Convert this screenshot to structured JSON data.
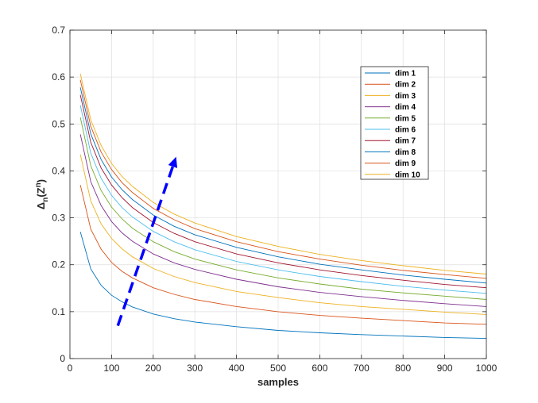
{
  "chart_data": {
    "type": "line",
    "xlabel": "samples",
    "ylabel": {
      "delta": "Δ",
      "n": "n",
      "open": "(",
      "z": "Z",
      "sup": "n",
      "close": ")"
    },
    "xlim": [
      0,
      1000
    ],
    "ylim": [
      0,
      0.7
    ],
    "xticks": [
      0,
      100,
      200,
      300,
      400,
      500,
      600,
      700,
      800,
      900,
      1000
    ],
    "yticks": [
      0,
      0.1,
      0.2,
      0.3,
      0.4,
      0.5,
      0.6,
      0.7
    ],
    "grid": true,
    "legend_location": "top-right",
    "x": [
      25,
      50,
      75,
      100,
      125,
      150,
      200,
      250,
      300,
      400,
      500,
      600,
      700,
      800,
      900,
      1000
    ],
    "series": [
      {
        "name": "dim 1",
        "color": "#0072bd",
        "values": [
          0.27,
          0.191,
          0.156,
          0.135,
          0.121,
          0.11,
          0.095,
          0.085,
          0.078,
          0.068,
          0.06,
          0.055,
          0.051,
          0.048,
          0.045,
          0.043
        ]
      },
      {
        "name": "dim 2",
        "color": "#d95319",
        "values": [
          0.37,
          0.276,
          0.233,
          0.205,
          0.186,
          0.172,
          0.151,
          0.137,
          0.126,
          0.111,
          0.1,
          0.092,
          0.086,
          0.081,
          0.076,
          0.073
        ]
      },
      {
        "name": "dim 3",
        "color": "#edb120",
        "values": [
          0.435,
          0.336,
          0.287,
          0.256,
          0.234,
          0.217,
          0.192,
          0.175,
          0.162,
          0.143,
          0.13,
          0.119,
          0.111,
          0.105,
          0.099,
          0.094
        ]
      },
      {
        "name": "dim 4",
        "color": "#7e2f8e",
        "values": [
          0.478,
          0.377,
          0.326,
          0.292,
          0.268,
          0.25,
          0.223,
          0.204,
          0.19,
          0.169,
          0.153,
          0.141,
          0.132,
          0.124,
          0.117,
          0.111
        ]
      },
      {
        "name": "dim 5",
        "color": "#77ac30",
        "values": [
          0.514,
          0.411,
          0.358,
          0.323,
          0.298,
          0.278,
          0.249,
          0.228,
          0.212,
          0.189,
          0.172,
          0.159,
          0.148,
          0.14,
          0.133,
          0.126
        ]
      },
      {
        "name": "dim 6",
        "color": "#4dbeee",
        "values": [
          0.54,
          0.438,
          0.384,
          0.348,
          0.322,
          0.302,
          0.271,
          0.249,
          0.232,
          0.207,
          0.189,
          0.175,
          0.164,
          0.154,
          0.146,
          0.139
        ]
      },
      {
        "name": "dim 7",
        "color": "#a2142f",
        "values": [
          0.562,
          0.461,
          0.406,
          0.37,
          0.343,
          0.322,
          0.29,
          0.267,
          0.249,
          0.223,
          0.204,
          0.189,
          0.177,
          0.167,
          0.158,
          0.151
        ]
      },
      {
        "name": "dim 8",
        "color": "#0072bd",
        "values": [
          0.578,
          0.479,
          0.424,
          0.387,
          0.36,
          0.339,
          0.306,
          0.282,
          0.264,
          0.237,
          0.217,
          0.201,
          0.189,
          0.178,
          0.169,
          0.161
        ]
      },
      {
        "name": "dim 9",
        "color": "#d95319",
        "values": [
          0.594,
          0.495,
          0.44,
          0.403,
          0.375,
          0.354,
          0.32,
          0.296,
          0.277,
          0.249,
          0.228,
          0.212,
          0.199,
          0.188,
          0.179,
          0.171
        ]
      },
      {
        "name": "dim 10",
        "color": "#edb120",
        "values": [
          0.607,
          0.509,
          0.454,
          0.416,
          0.388,
          0.367,
          0.333,
          0.308,
          0.289,
          0.26,
          0.239,
          0.222,
          0.209,
          0.198,
          0.188,
          0.18
        ]
      }
    ],
    "annotation": {
      "shape": "dashed-arrow",
      "color": "#0000ff",
      "from": [
        115,
        0.07
      ],
      "to": [
        255,
        0.43
      ]
    }
  }
}
